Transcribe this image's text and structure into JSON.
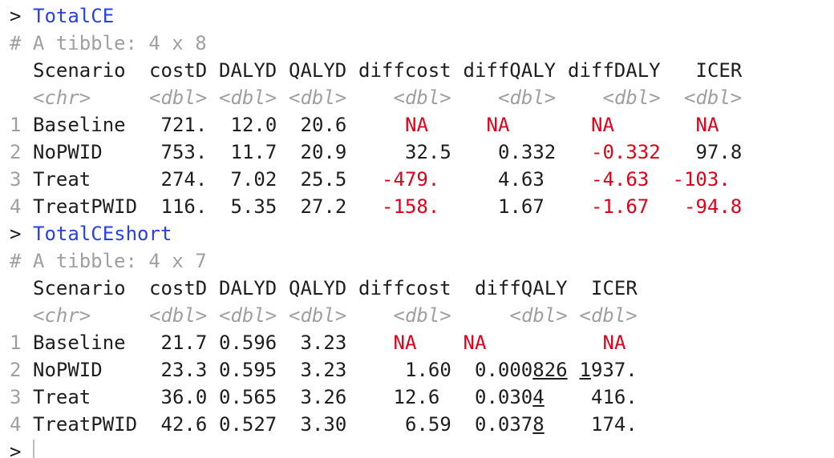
{
  "blocks": [
    {
      "prompt": ">",
      "command": "TotalCE",
      "summary": "# A tibble: 4 x 8",
      "columns": [
        "Scenario",
        "costD",
        "DALYD",
        "QALYD",
        "diffcost",
        "diffQALY",
        "diffDALY",
        "ICER"
      ],
      "types": [
        "<chr>",
        "<dbl>",
        "<dbl>",
        "<dbl>",
        "<dbl>",
        "<dbl>",
        "<dbl>",
        "<dbl>"
      ],
      "rows": [
        {
          "index": "1",
          "cells": [
            "Baseline",
            "721.",
            "12.0",
            "20.6",
            "NA",
            "NA",
            "NA",
            "NA"
          ]
        },
        {
          "index": "2",
          "cells": [
            "NoPWID",
            "753.",
            "11.7",
            "20.9",
            "32.5",
            "0.332",
            "-0.332",
            "97.8"
          ]
        },
        {
          "index": "3",
          "cells": [
            "Treat",
            "274.",
            "7.02",
            "25.5",
            "-479.",
            "4.63",
            "-4.63",
            "-103."
          ]
        },
        {
          "index": "4",
          "cells": [
            "TreatPWID",
            "116.",
            "5.35",
            "27.2",
            "-158.",
            "1.67",
            "-1.67",
            "-94.8"
          ]
        }
      ]
    },
    {
      "prompt": ">",
      "command": "TotalCEshort",
      "summary": "# A tibble: 4 x 7",
      "columns": [
        "Scenario",
        "costD",
        "DALYD",
        "QALYD",
        "diffcost",
        "diffQALY",
        "ICER"
      ],
      "types": [
        "<chr>",
        "<dbl>",
        "<dbl>",
        "<dbl>",
        "<dbl>",
        "<dbl>",
        "<dbl>"
      ],
      "rows": [
        {
          "index": "1",
          "cells": [
            "Baseline",
            "21.7",
            "0.596",
            "3.23",
            "NA",
            "NA",
            "NA"
          ]
        },
        {
          "index": "2",
          "cells": [
            "NoPWID",
            "23.3",
            "0.595",
            "3.23",
            "1.60",
            [
              {
                "text": "0.000"
              },
              {
                "text": "826",
                "underline": true
              }
            ],
            [
              {
                "text": "1",
                "underline": true
              },
              {
                "text": "937."
              }
            ]
          ]
        },
        {
          "index": "3",
          "cells": [
            "Treat",
            "36.0",
            "0.565",
            "3.26",
            "12.6",
            [
              {
                "text": "0.030"
              },
              {
                "text": "4",
                "underline": true
              }
            ],
            "416."
          ]
        },
        {
          "index": "4",
          "cells": [
            "TreatPWID",
            "42.6",
            "0.527",
            "3.30",
            "6.59",
            [
              {
                "text": "0.037"
              },
              {
                "text": "8",
                "underline": true
              }
            ],
            "174."
          ]
        }
      ]
    }
  ],
  "final_prompt": ">"
}
